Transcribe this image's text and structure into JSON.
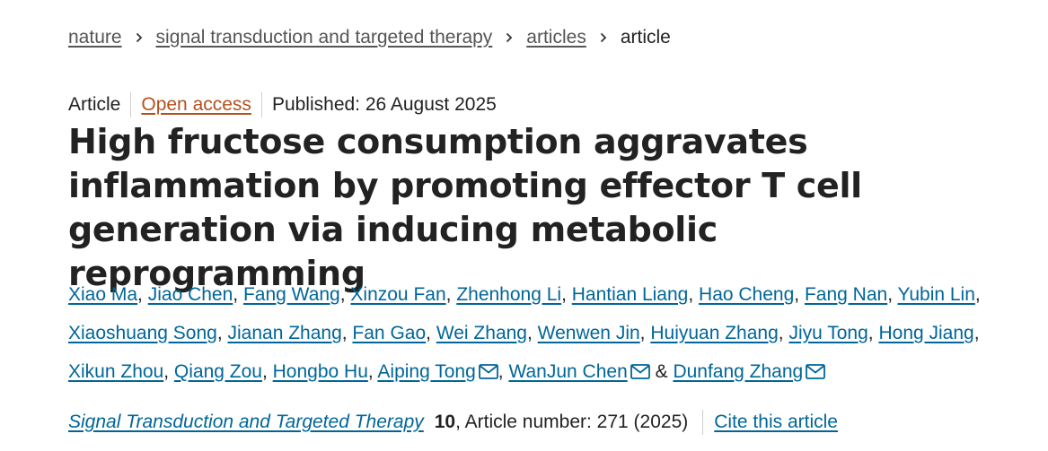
{
  "breadcrumb": {
    "items": [
      {
        "label": "nature"
      },
      {
        "label": "signal transduction and targeted therapy"
      },
      {
        "label": "articles"
      }
    ],
    "current": "article"
  },
  "meta": {
    "type": "Article",
    "open_access": "Open access",
    "published": "Published: 26 August 2025"
  },
  "title": "High fructose consumption aggravates inflammation by promoting effector T cell generation via inducing metabolic reprogramming",
  "authors": [
    {
      "name": "Xiao Ma"
    },
    {
      "name": "Jiao Chen"
    },
    {
      "name": "Fang Wang"
    },
    {
      "name": "Xinzou Fan"
    },
    {
      "name": "Zhenhong Li"
    },
    {
      "name": "Hantian Liang"
    },
    {
      "name": "Hao Cheng"
    },
    {
      "name": "Fang Nan"
    },
    {
      "name": "Yubin Lin"
    },
    {
      "name": "Xiaoshuang Song"
    },
    {
      "name": "Jianan Zhang"
    },
    {
      "name": "Fan Gao"
    },
    {
      "name": "Wei Zhang"
    },
    {
      "name": "Wenwen Jin"
    },
    {
      "name": "Huiyuan Zhang"
    },
    {
      "name": "Jiyu Tong"
    },
    {
      "name": "Hong Jiang"
    },
    {
      "name": "Xikun Zhou"
    },
    {
      "name": "Qiang Zou"
    },
    {
      "name": "Hongbo Hu"
    },
    {
      "name": "Aiping Tong",
      "icon": "mail-icon"
    },
    {
      "name": "WanJun Chen",
      "icon": "mail-icon"
    },
    {
      "name": "Dunfang Zhang",
      "icon": "mail-icon"
    }
  ],
  "author_separators": {
    "comma": ", ",
    "final": " & "
  },
  "journal": {
    "name": "Signal Transduction and Targeted Therapy",
    "volume": "10",
    "article_number": ", Article number: 271 (2025)",
    "cite_label": "Cite this article"
  },
  "colors": {
    "link": "#006699",
    "open_access": "#b3511e",
    "text": "#222222",
    "breadcrumb_link": "#555555"
  }
}
